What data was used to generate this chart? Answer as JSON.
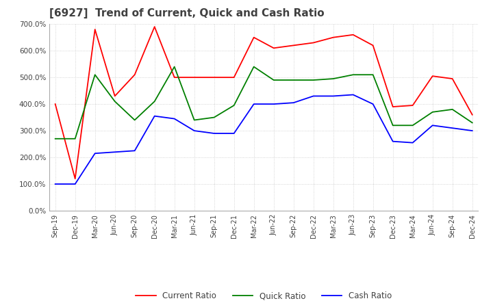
{
  "title": "[6927]  Trend of Current, Quick and Cash Ratio",
  "x_labels": [
    "Sep-19",
    "Dec-19",
    "Mar-20",
    "Jun-20",
    "Sep-20",
    "Dec-20",
    "Mar-21",
    "Jun-21",
    "Sep-21",
    "Dec-21",
    "Mar-22",
    "Jun-22",
    "Sep-22",
    "Dec-22",
    "Mar-23",
    "Jun-23",
    "Sep-23",
    "Dec-23",
    "Mar-24",
    "Jun-24",
    "Sep-24",
    "Dec-24"
  ],
  "current_ratio": [
    400,
    120,
    680,
    430,
    510,
    690,
    500,
    500,
    500,
    500,
    650,
    610,
    620,
    630,
    650,
    660,
    620,
    390,
    395,
    505,
    495,
    360
  ],
  "quick_ratio": [
    270,
    270,
    510,
    410,
    340,
    410,
    540,
    340,
    350,
    395,
    540,
    490,
    490,
    490,
    495,
    510,
    510,
    320,
    320,
    370,
    380,
    330
  ],
  "cash_ratio": [
    100,
    100,
    215,
    220,
    225,
    355,
    345,
    300,
    290,
    290,
    400,
    400,
    405,
    430,
    430,
    435,
    400,
    260,
    255,
    320,
    310,
    300
  ],
  "current_color": "#ff0000",
  "quick_color": "#008000",
  "cash_color": "#0000ff",
  "ylim": [
    0,
    700
  ],
  "yticks": [
    0,
    100,
    200,
    300,
    400,
    500,
    600,
    700
  ],
  "background_color": "#ffffff",
  "grid_color": "#c8c8c8",
  "grid_style": "dotted",
  "title_color": "#404040",
  "title_fontsize": 11
}
